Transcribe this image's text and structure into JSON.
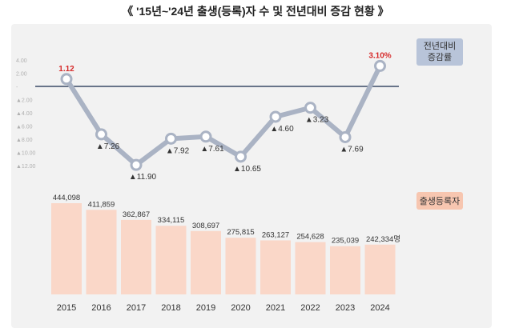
{
  "title": "《 '15년~'24년 출생(등록)자 수 및 전년대비 증감 현황 》",
  "legend": {
    "line_series": "전년대비\n증감률",
    "bar_series": "출생등록자"
  },
  "colors": {
    "line": "#aab3c4",
    "marker_fill": "#ffffff",
    "baseline": "#3b4a66",
    "bar": "#fad7c8",
    "line_badge": "#b8c4d9",
    "bar_badge": "#f7c6b0",
    "positive_label": "#d62b2b"
  },
  "chart_data": [
    {
      "type": "line",
      "name": "전년대비 증감률",
      "categories": [
        "2015",
        "2016",
        "2017",
        "2018",
        "2019",
        "2020",
        "2021",
        "2022",
        "2023",
        "2024"
      ],
      "values": [
        1.12,
        -7.26,
        -11.9,
        -7.92,
        -7.61,
        -10.65,
        -4.6,
        -3.23,
        -7.69,
        3.1
      ],
      "data_labels": [
        "1.12",
        "▲7.26",
        "▲11.90",
        "▲7.92",
        "▲7.61",
        "▲10.65",
        "▲4.60",
        "▲3.23",
        "▲7.69",
        "3.10%"
      ],
      "y_ticks": [
        "4.00",
        "2.00",
        "-",
        "▲2.00",
        "▲4.00",
        "▲6.00",
        "▲8.00",
        "▲10.00",
        "▲12.00"
      ],
      "ylim": [
        -12,
        4
      ]
    },
    {
      "type": "bar",
      "name": "출생등록자",
      "categories": [
        "2015",
        "2016",
        "2017",
        "2018",
        "2019",
        "2020",
        "2021",
        "2022",
        "2023",
        "2024"
      ],
      "values": [
        444098,
        411859,
        362867,
        334115,
        308697,
        275815,
        263127,
        254628,
        235039,
        242334
      ],
      "data_labels": [
        "444,098",
        "411,859",
        "362,867",
        "334,115",
        "308,697",
        "275,815",
        "263,127",
        "254,628",
        "235,039",
        "242,334명"
      ]
    }
  ]
}
